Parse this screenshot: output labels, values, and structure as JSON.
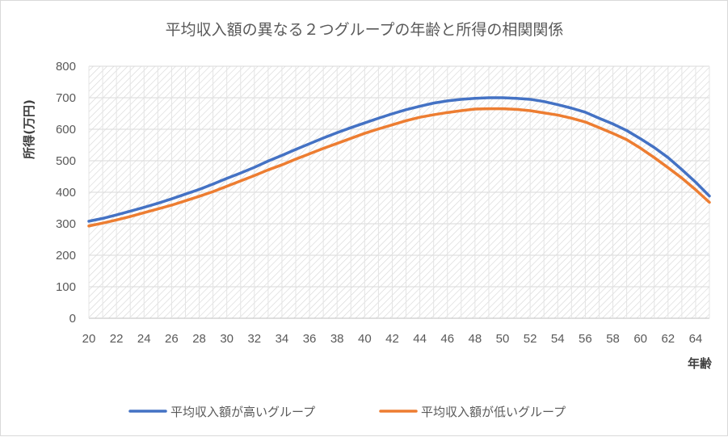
{
  "chart_data": {
    "type": "line",
    "title": "平均収入額の異なる２つグループの年齢と所得の相関関係",
    "xlabel": "年齢",
    "ylabel": "所得(万円)",
    "ylim": [
      0,
      800
    ],
    "yticks": [
      "0",
      "100",
      "200",
      "300",
      "400",
      "500",
      "600",
      "700",
      "800"
    ],
    "xlim": [
      20,
      65
    ],
    "xticks": [
      "20",
      "22",
      "24",
      "26",
      "28",
      "30",
      "32",
      "34",
      "36",
      "38",
      "40",
      "42",
      "44",
      "46",
      "48",
      "50",
      "52",
      "54",
      "56",
      "58",
      "60",
      "62",
      "64"
    ],
    "grid": true,
    "legend_position": "bottom",
    "x": [
      20,
      21,
      22,
      23,
      24,
      25,
      26,
      27,
      28,
      29,
      30,
      31,
      32,
      33,
      34,
      35,
      36,
      37,
      38,
      39,
      40,
      41,
      42,
      43,
      44,
      45,
      46,
      47,
      48,
      49,
      50,
      51,
      52,
      53,
      54,
      55,
      56,
      57,
      58,
      59,
      60,
      61,
      62,
      63,
      64,
      65
    ],
    "series": [
      {
        "name": "平均収入額が高いグループ",
        "color": "#4472C4",
        "values": [
          308,
          317,
          328,
          340,
          352,
          365,
          379,
          394,
          409,
          426,
          444,
          461,
          479,
          499,
          517,
          536,
          554,
          572,
          589,
          605,
          620,
          635,
          649,
          662,
          673,
          683,
          690,
          695,
          698,
          700,
          700,
          698,
          695,
          688,
          678,
          667,
          654,
          635,
          617,
          596,
          570,
          542,
          510,
          472,
          432,
          388
        ]
      },
      {
        "name": "平均収入額が低いグループ",
        "color": "#ED7D31",
        "values": [
          293,
          302,
          312,
          323,
          335,
          347,
          359,
          373,
          387,
          402,
          419,
          436,
          453,
          471,
          487,
          505,
          522,
          539,
          555,
          571,
          587,
          601,
          614,
          627,
          638,
          646,
          653,
          659,
          664,
          665,
          665,
          663,
          659,
          652,
          645,
          635,
          623,
          605,
          587,
          567,
          540,
          510,
          478,
          445,
          408,
          368
        ]
      }
    ]
  }
}
